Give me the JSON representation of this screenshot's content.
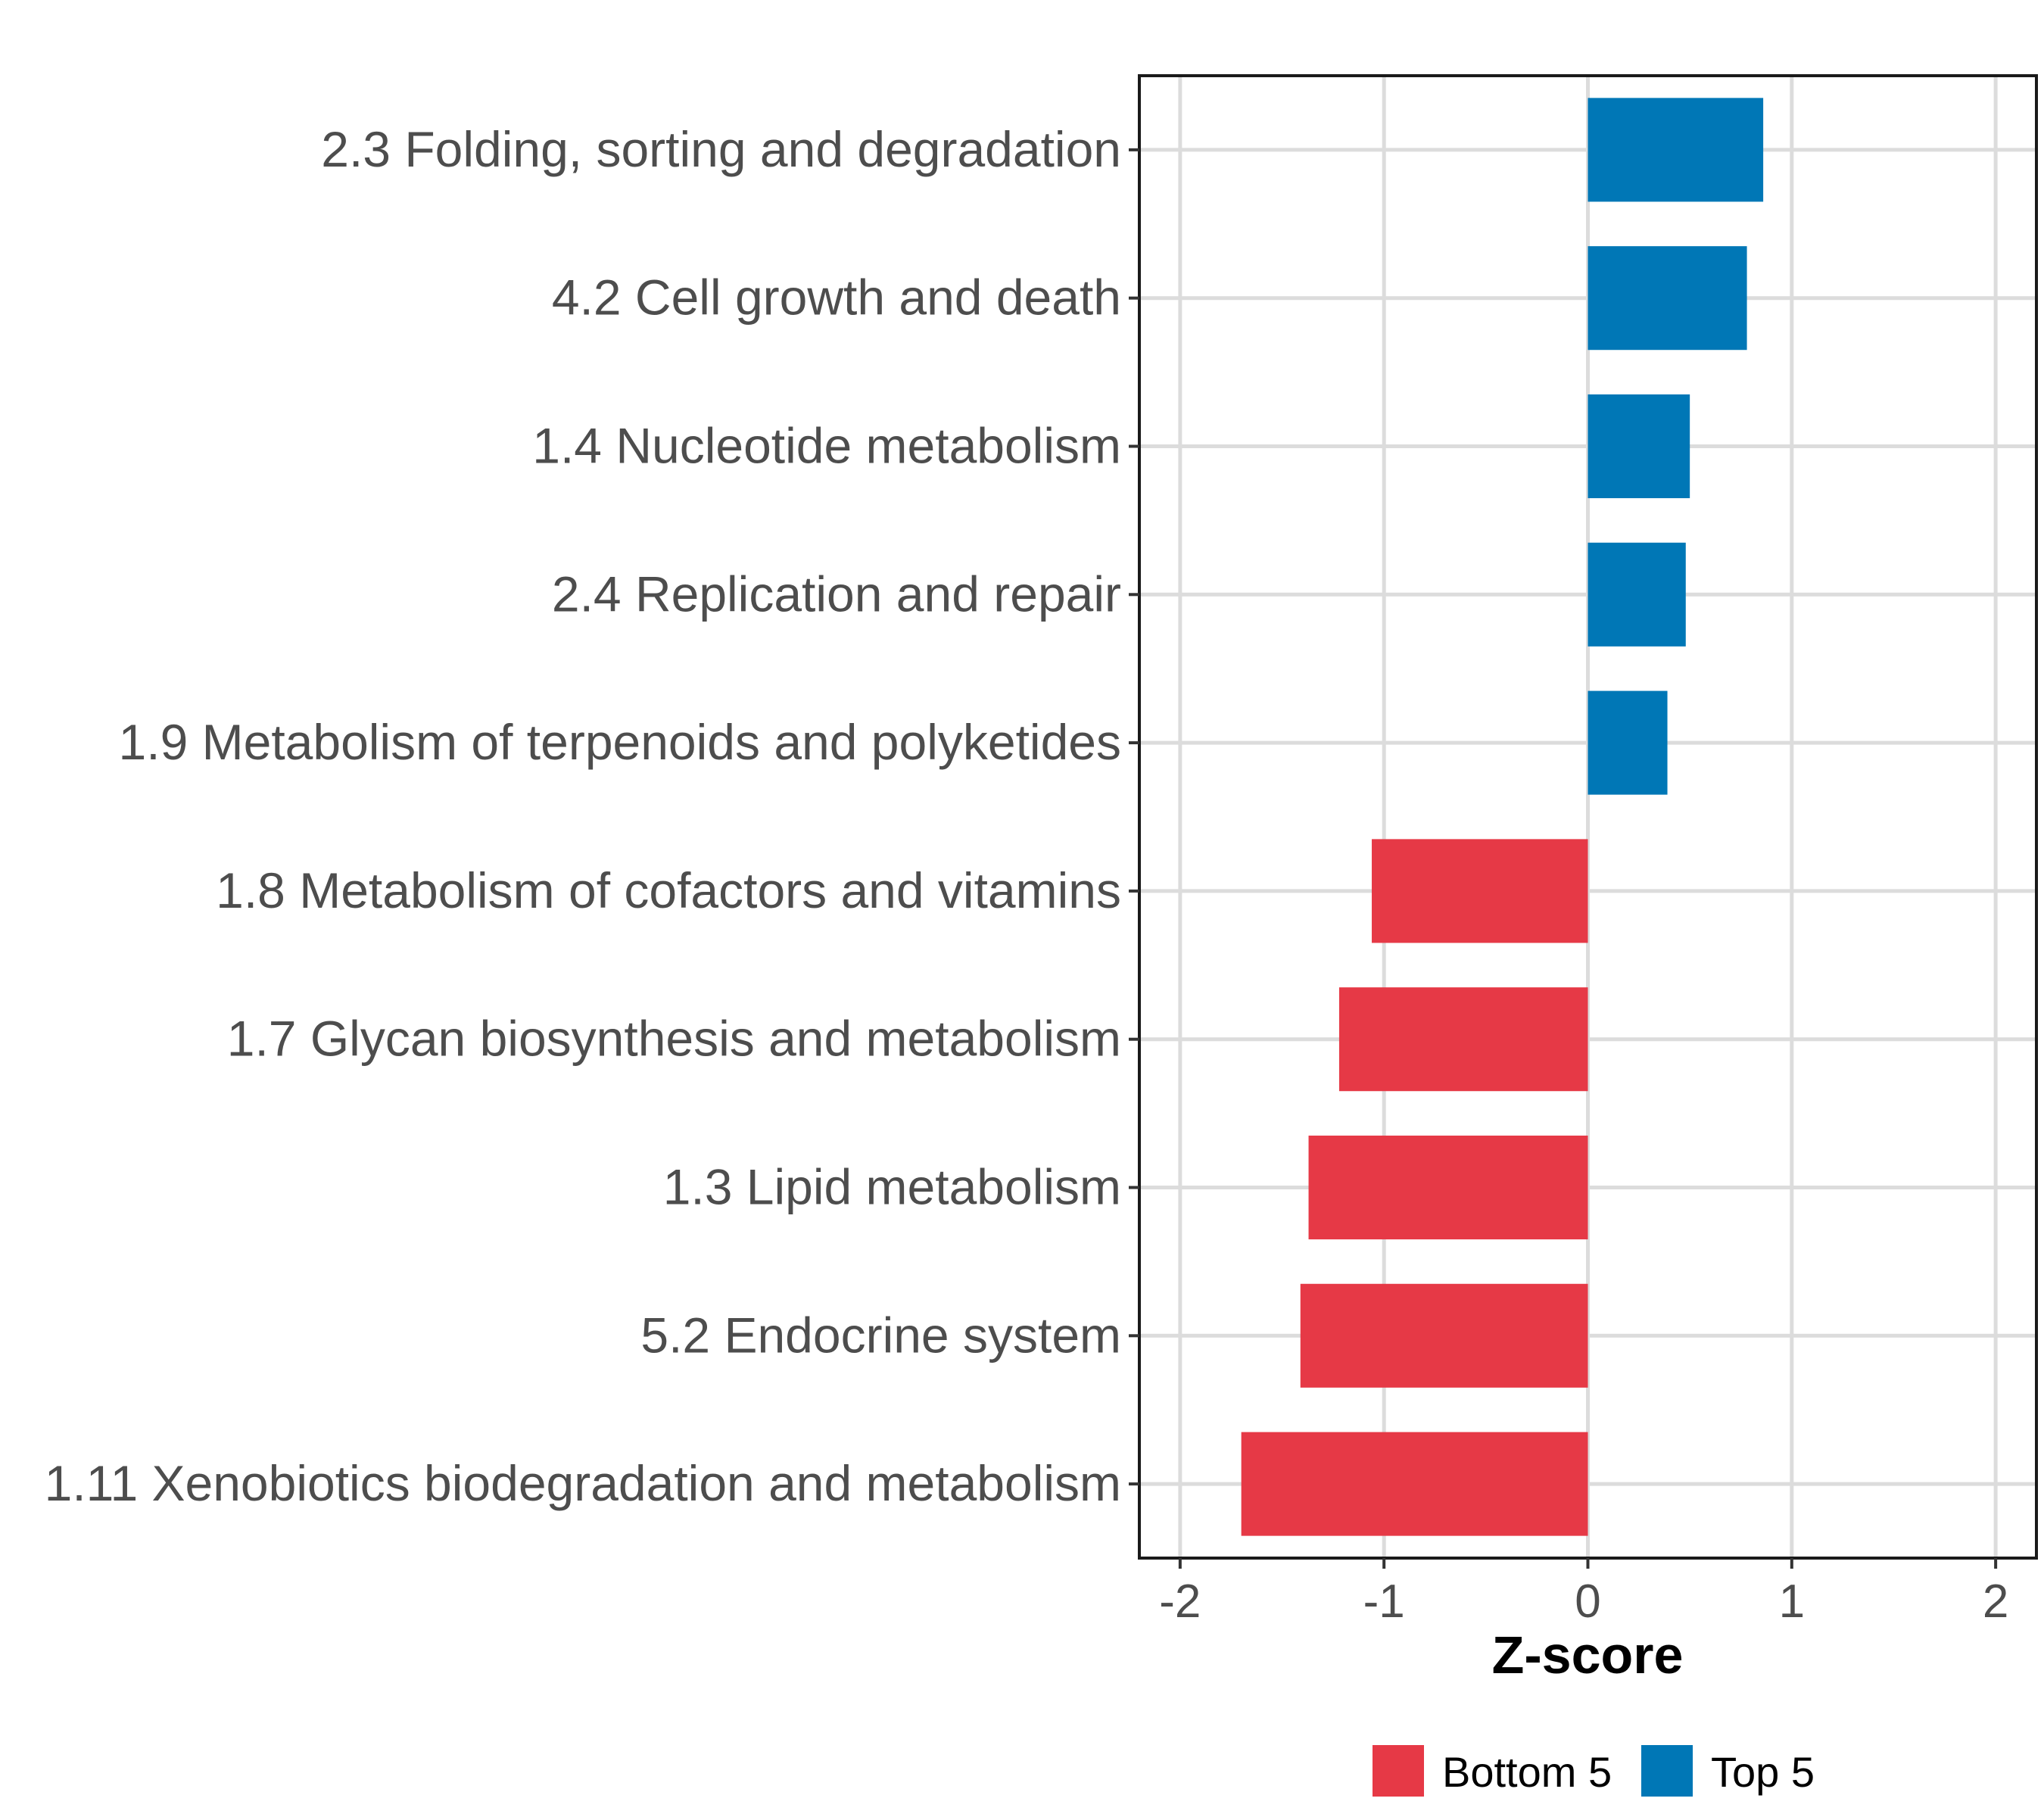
{
  "chart_data": {
    "type": "bar",
    "orientation": "horizontal",
    "categories": [
      "2.3 Folding, sorting and degradation",
      "4.2 Cell growth and death",
      "1.4 Nucleotide metabolism",
      "2.4 Replication and repair",
      "1.9 Metabolism of terpenoids and polyketides",
      "1.8 Metabolism of cofactors and vitamins",
      "1.7 Glycan biosynthesis and metabolism",
      "1.3 Lipid metabolism",
      "5.2 Endocrine system",
      "1.11 Xenobiotics biodegradation and metabolism"
    ],
    "values": [
      0.86,
      0.78,
      0.5,
      0.48,
      0.39,
      -1.06,
      -1.22,
      -1.37,
      -1.41,
      -1.7
    ],
    "groups": [
      "Top 5",
      "Top 5",
      "Top 5",
      "Top 5",
      "Top 5",
      "Bottom 5",
      "Bottom 5",
      "Bottom 5",
      "Bottom 5",
      "Bottom 5"
    ],
    "xlabel": "Z-score",
    "ylabel": "",
    "xlim": [
      -2.2,
      2.2
    ],
    "xticks": [
      -2,
      -1,
      0,
      1,
      2
    ],
    "xtick_labels": [
      "-2",
      "-1",
      "0",
      "1",
      "2"
    ],
    "grid": true,
    "legend": {
      "position": "bottom",
      "entries": [
        {
          "label": "Bottom 5",
          "color": "#E63946"
        },
        {
          "label": "Top 5",
          "color": "#0077B6"
        }
      ]
    }
  }
}
